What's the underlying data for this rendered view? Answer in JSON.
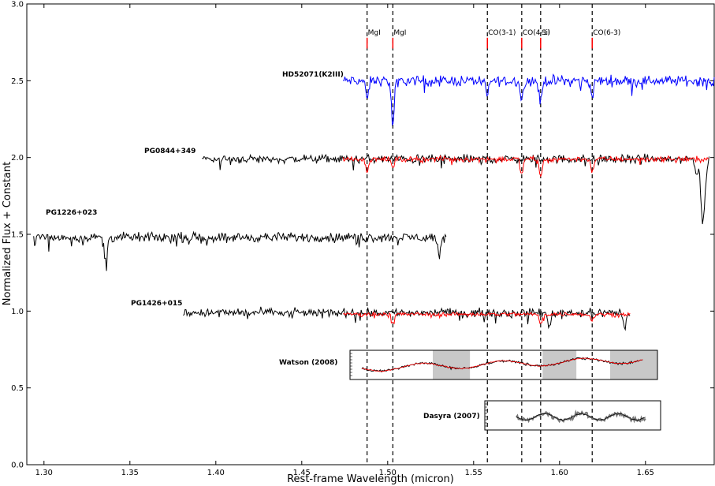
{
  "chart_data": {
    "type": "line",
    "title": "",
    "xlabel": "Rest-frame Wavelength (micron)",
    "ylabel": "Normalized Flux + Constant",
    "xlim": [
      1.29,
      1.69
    ],
    "ylim": [
      0.0,
      3.0
    ],
    "x_ticks": [
      "1.30",
      "1.35",
      "1.40",
      "1.45",
      "1.50",
      "1.55",
      "1.60",
      "1.65"
    ],
    "x_tick_values": [
      1.3,
      1.35,
      1.4,
      1.45,
      1.5,
      1.55,
      1.6,
      1.65
    ],
    "y_ticks": [
      "0.0",
      "0.5",
      "1.0",
      "1.5",
      "2.0",
      "2.5",
      "3.0"
    ],
    "y_tick_values": [
      0.0,
      0.5,
      1.0,
      1.5,
      2.0,
      2.5,
      3.0
    ],
    "grid": false,
    "line_markers": [
      {
        "label": "MgI",
        "x": 1.488
      },
      {
        "label": "MgI",
        "x": 1.503
      },
      {
        "label": "CO(3-1)",
        "x": 1.558
      },
      {
        "label": "CO(4-1)",
        "x": 1.578
      },
      {
        "label": "SiI",
        "x": 1.589
      },
      {
        "label": "CO(6-3)",
        "x": 1.619
      }
    ],
    "series": [
      {
        "name": "HD52071(K2III)",
        "color": "#0000ff",
        "x_range": [
          1.474,
          1.69
        ],
        "level": 2.5,
        "noise": 0.05,
        "dips": [
          [
            1.488,
            -0.12
          ],
          [
            1.503,
            -0.28
          ],
          [
            1.558,
            -0.1
          ],
          [
            1.578,
            -0.12
          ],
          [
            1.589,
            -0.14
          ],
          [
            1.619,
            -0.1
          ]
        ]
      },
      {
        "name": "PG0844+349",
        "color": "#000000",
        "x_range": [
          1.392,
          1.687
        ],
        "level": 1.99,
        "noise": 0.04,
        "dips": [
          [
            1.683,
            -0.36
          ],
          [
            1.6845,
            -0.2
          ],
          [
            1.68,
            -0.1
          ]
        ]
      },
      {
        "name": "",
        "color": "#ff0000",
        "x_range": [
          1.474,
          1.687
        ],
        "level": 1.99,
        "noise": 0.025,
        "dips": [
          [
            1.488,
            -0.08
          ],
          [
            1.503,
            -0.06
          ],
          [
            1.578,
            -0.1
          ],
          [
            1.589,
            -0.12
          ],
          [
            1.619,
            -0.08
          ]
        ]
      },
      {
        "name": "PG1226+023",
        "color": "#000000",
        "x_range": [
          1.294,
          1.534
        ],
        "level": 1.48,
        "noise": 0.045,
        "dips": [
          [
            1.336,
            -0.15
          ],
          [
            1.53,
            -0.12
          ]
        ]
      },
      {
        "name": "PG1426+015",
        "color": "#000000",
        "x_range": [
          1.381,
          1.641
        ],
        "level": 0.99,
        "noise": 0.04,
        "dips": [
          [
            1.594,
            -0.1
          ],
          [
            1.638,
            -0.1
          ]
        ]
      },
      {
        "name": "",
        "color": "#ff0000",
        "x_range": [
          1.474,
          1.641
        ],
        "level": 0.98,
        "noise": 0.02,
        "dips": [
          [
            1.503,
            -0.06
          ],
          [
            1.589,
            -0.06
          ],
          [
            1.619,
            -0.04
          ]
        ]
      }
    ],
    "insets": [
      {
        "name": "Watson (2008)",
        "x_range": [
          1.476,
          1.658
        ],
        "y_range": [
          0.57,
          0.75
        ],
        "shaded": [
          [
            1.525,
            1.547
          ],
          [
            1.59,
            1.61
          ],
          [
            1.63,
            1.658
          ]
        ]
      },
      {
        "name": "Dasyra (2007)",
        "x_range": [
          1.542,
          1.647
        ],
        "y_range": [
          0.22,
          0.41
        ]
      }
    ]
  }
}
